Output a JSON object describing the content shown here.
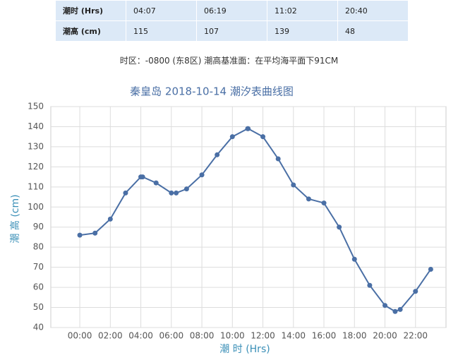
{
  "table": {
    "rows": [
      [
        "潮时 (Hrs)",
        "04:07",
        "06:19",
        "11:02",
        "20:40"
      ],
      [
        "潮高 (cm)",
        "115",
        "107",
        "139",
        "48"
      ]
    ]
  },
  "note": "时区：-0800 (东8区) 潮高基准面：在平均海平面下91CM",
  "chart_data": {
    "type": "line",
    "title": "秦皇岛 2018-10-14 潮汐表曲线图",
    "x_label": "潮 时 (Hrs)",
    "y_label": "潮 高 (cm)",
    "color": "#4a6fa5",
    "grid": true,
    "x": [
      0,
      1,
      2,
      3,
      4,
      4.117,
      5,
      6,
      6.317,
      7,
      8,
      9,
      10,
      11,
      11.033,
      12,
      13,
      14,
      15,
      16,
      17,
      18,
      19,
      20,
      20.667,
      21,
      22,
      23
    ],
    "y": [
      86,
      87,
      94,
      107,
      115,
      115,
      112,
      107,
      107,
      109,
      116,
      126,
      135,
      139,
      139,
      135,
      124,
      111,
      104,
      102,
      90,
      74,
      61,
      51,
      48,
      49,
      58,
      69
    ],
    "xlim": [
      -1.9,
      24
    ],
    "ylim": [
      40,
      150
    ],
    "xticks": [
      {
        "value": 0,
        "label": "00:00"
      },
      {
        "value": 2,
        "label": "02:00"
      },
      {
        "value": 4,
        "label": "04:00"
      },
      {
        "value": 6,
        "label": "06:00"
      },
      {
        "value": 8,
        "label": "08:00"
      },
      {
        "value": 10,
        "label": "10:00"
      },
      {
        "value": 12,
        "label": "12:00"
      },
      {
        "value": 14,
        "label": "14:00"
      },
      {
        "value": 16,
        "label": "16:00"
      },
      {
        "value": 18,
        "label": "18:00"
      },
      {
        "value": 20,
        "label": "20:00"
      },
      {
        "value": 22,
        "label": "22:00"
      }
    ],
    "yticks": [
      40,
      50,
      60,
      70,
      80,
      90,
      100,
      110,
      120,
      130,
      140,
      150
    ]
  }
}
